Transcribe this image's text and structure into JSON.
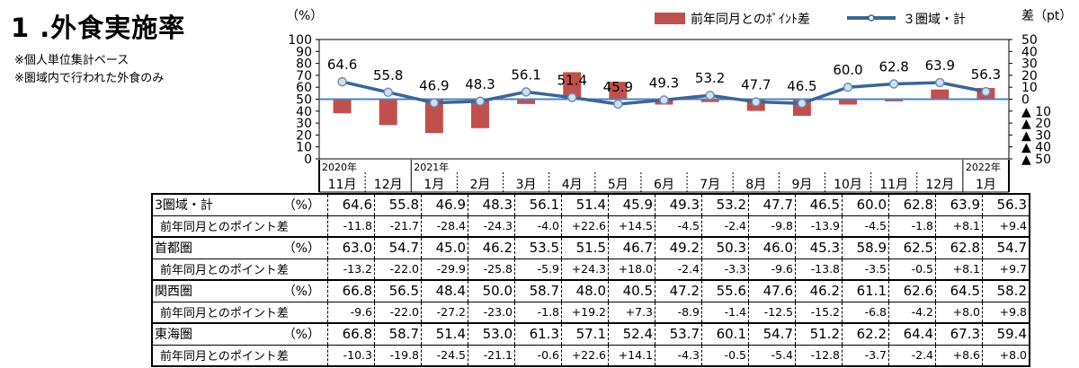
{
  "title": "1 .外食実施率",
  "notes": [
    "※個人単位集計ベース",
    "※圏域内で行われた外食のみ"
  ],
  "chart_data": {
    "type": "bar+line",
    "left_axis_unit": "（%）",
    "right_axis_unit": "差（pt）",
    "left_ticks": [
      "100",
      "90",
      "80",
      "70",
      "60",
      "50",
      "40",
      "30",
      "20",
      "10",
      "0"
    ],
    "right_ticks": [
      "50",
      "40",
      "30",
      "20",
      "10",
      "0",
      "▲ 10",
      "▲ 20",
      "▲ 30",
      "▲ 40",
      "▲ 50"
    ],
    "ylim_left": [
      0,
      100
    ],
    "ylim_right": [
      -50,
      50
    ],
    "legend": {
      "bar": "前年同月とのﾎﾟｲﾝﾄ差",
      "line": "３圏域・計"
    },
    "year_labels": [
      {
        "index": 0,
        "text": "2020年"
      },
      {
        "index": 2,
        "text": "2021年"
      },
      {
        "index": 14,
        "text": "2022年"
      }
    ],
    "categories": [
      "11月",
      "12月",
      "1月",
      "2月",
      "3月",
      "4月",
      "5月",
      "6月",
      "7月",
      "8月",
      "9月",
      "10月",
      "11月",
      "12月",
      "1月"
    ],
    "line_series": {
      "name": "３圏域・計",
      "values": [
        64.6,
        55.8,
        46.9,
        48.3,
        56.1,
        51.4,
        45.9,
        49.3,
        53.2,
        47.7,
        46.5,
        60.0,
        62.8,
        63.9,
        56.3
      ]
    },
    "bar_series": {
      "name": "前年同月とのﾎﾟｲﾝﾄ差",
      "values": [
        -11.8,
        -21.7,
        -28.4,
        -24.3,
        -4.0,
        22.6,
        14.5,
        -4.5,
        -2.4,
        -9.8,
        -13.9,
        -4.5,
        -1.8,
        8.1,
        9.4
      ]
    },
    "colors": {
      "bar": "#c0504d",
      "line": "#3b6596",
      "marker_fill": "#cfe0f0",
      "baseline": "#4f81bd"
    }
  },
  "table": {
    "rows": [
      {
        "label": "3圏域・計",
        "unit": "（%）",
        "sub": false,
        "values": [
          "64.6",
          "55.8",
          "46.9",
          "48.3",
          "56.1",
          "51.4",
          "45.9",
          "49.3",
          "53.2",
          "47.7",
          "46.5",
          "60.0",
          "62.8",
          "63.9",
          "56.3"
        ]
      },
      {
        "label": "前年同月とのポイント差",
        "unit": "",
        "sub": true,
        "values": [
          "-11.8",
          "-21.7",
          "-28.4",
          "-24.3",
          "-4.0",
          "+22.6",
          "+14.5",
          "-4.5",
          "-2.4",
          "-9.8",
          "-13.9",
          "-4.5",
          "-1.8",
          "+8.1",
          "+9.4"
        ]
      },
      {
        "label": "首都圏",
        "unit": "（%）",
        "sub": false,
        "values": [
          "63.0",
          "54.7",
          "45.0",
          "46.2",
          "53.5",
          "51.5",
          "46.7",
          "49.2",
          "50.3",
          "46.0",
          "45.3",
          "58.9",
          "62.5",
          "62.8",
          "54.7"
        ]
      },
      {
        "label": "前年同月とのポイント差",
        "unit": "",
        "sub": true,
        "values": [
          "-13.2",
          "-22.0",
          "-29.9",
          "-25.8",
          "-5.9",
          "+24.3",
          "+18.0",
          "-2.4",
          "-3.3",
          "-9.6",
          "-13.8",
          "-3.5",
          "-0.5",
          "+8.1",
          "+9.7"
        ]
      },
      {
        "label": "関西圏",
        "unit": "（%）",
        "sub": false,
        "values": [
          "66.8",
          "56.5",
          "48.4",
          "50.0",
          "58.7",
          "48.0",
          "40.5",
          "47.2",
          "55.6",
          "47.6",
          "46.2",
          "61.1",
          "62.6",
          "64.5",
          "58.2"
        ]
      },
      {
        "label": "前年同月とのポイント差",
        "unit": "",
        "sub": true,
        "values": [
          "-9.6",
          "-22.0",
          "-27.2",
          "-23.0",
          "-1.8",
          "+19.2",
          "+7.3",
          "-8.9",
          "-1.4",
          "-12.5",
          "-15.2",
          "-6.8",
          "-4.2",
          "+8.0",
          "+9.8"
        ]
      },
      {
        "label": "東海圏",
        "unit": "（%）",
        "sub": false,
        "values": [
          "66.8",
          "58.7",
          "51.4",
          "53.0",
          "61.3",
          "57.1",
          "52.4",
          "53.7",
          "60.1",
          "54.7",
          "51.2",
          "62.2",
          "64.4",
          "67.3",
          "59.4"
        ]
      },
      {
        "label": "前年同月とのポイント差",
        "unit": "",
        "sub": true,
        "values": [
          "-10.3",
          "-19.8",
          "-24.5",
          "-21.1",
          "-0.6",
          "+22.6",
          "+14.1",
          "-4.3",
          "-0.5",
          "-5.4",
          "-12.8",
          "-3.7",
          "-2.4",
          "+8.6",
          "+8.0"
        ]
      }
    ]
  }
}
